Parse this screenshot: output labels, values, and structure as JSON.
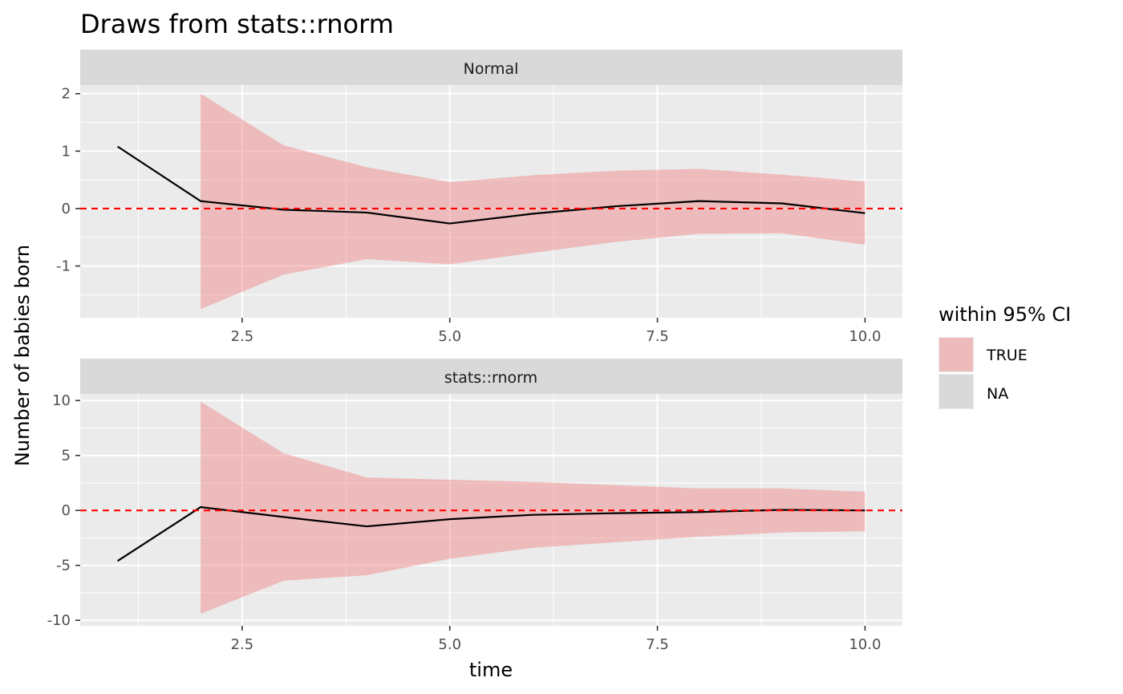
{
  "chart_data": {
    "type": "line",
    "title": "Draws from stats::rnorm",
    "xlabel": "time",
    "ylabel": "Number of babies born",
    "grid": true,
    "legend": {
      "title": "within 95% CI",
      "position": "right",
      "entries": [
        {
          "label": "TRUE",
          "color": "#f08080"
        },
        {
          "label": "NA",
          "color": "#d9d9d9"
        }
      ]
    },
    "colors": {
      "ribbon": "#f08080",
      "line": "#000000",
      "reference_line": "#ff0000",
      "panel_bg": "#ebebeb",
      "strip_bg": "#d9d9d9"
    },
    "panels": [
      {
        "strip": "Normal",
        "xlim": [
          0.55,
          10.45
        ],
        "ylim": [
          -1.9,
          2.15
        ],
        "x_ticks": [
          2.5,
          5.0,
          7.5,
          10.0
        ],
        "x_tick_labels": [
          "2.5",
          "5.0",
          "7.5",
          "10.0"
        ],
        "y_ticks": [
          -1,
          0,
          1,
          2
        ],
        "y_tick_labels": [
          "-1",
          "0",
          "1",
          "2"
        ],
        "reference_y": 0,
        "line": {
          "x": [
            1,
            2,
            3,
            4,
            5,
            6,
            7,
            8,
            9,
            10
          ],
          "y": [
            1.08,
            0.13,
            -0.02,
            -0.07,
            -0.26,
            -0.09,
            0.04,
            0.13,
            0.09,
            -0.08
          ]
        },
        "ribbon": {
          "x": [
            2,
            3,
            4,
            5,
            6,
            7,
            8,
            9,
            10
          ],
          "lower": [
            -1.75,
            -1.15,
            -0.88,
            -0.97,
            -0.77,
            -0.58,
            -0.44,
            -0.43,
            -0.63
          ],
          "upper": [
            2.0,
            1.1,
            0.72,
            0.46,
            0.58,
            0.66,
            0.69,
            0.59,
            0.47
          ]
        }
      },
      {
        "strip": "stats::rnorm",
        "xlim": [
          0.55,
          10.45
        ],
        "ylim": [
          -10.5,
          10.6
        ],
        "x_ticks": [
          2.5,
          5.0,
          7.5,
          10.0
        ],
        "x_tick_labels": [
          "2.5",
          "5.0",
          "7.5",
          "10.0"
        ],
        "y_ticks": [
          -10,
          -5,
          0,
          5,
          10
        ],
        "y_tick_labels": [
          "-10",
          "-5",
          "0",
          "5",
          "10"
        ],
        "reference_y": 0,
        "line": {
          "x": [
            1,
            2,
            3,
            4,
            5,
            6,
            7,
            8,
            9,
            10
          ],
          "y": [
            -4.6,
            0.3,
            -0.6,
            -1.45,
            -0.8,
            -0.4,
            -0.25,
            -0.15,
            0.05,
            0.0
          ]
        },
        "ribbon": {
          "x": [
            2,
            3,
            4,
            5,
            6,
            7,
            8,
            9,
            10
          ],
          "lower": [
            -9.4,
            -6.4,
            -5.9,
            -4.4,
            -3.4,
            -2.9,
            -2.4,
            -2.0,
            -1.9
          ],
          "upper": [
            9.9,
            5.2,
            3.0,
            2.8,
            2.6,
            2.3,
            2.0,
            2.0,
            1.7
          ]
        }
      }
    ]
  }
}
